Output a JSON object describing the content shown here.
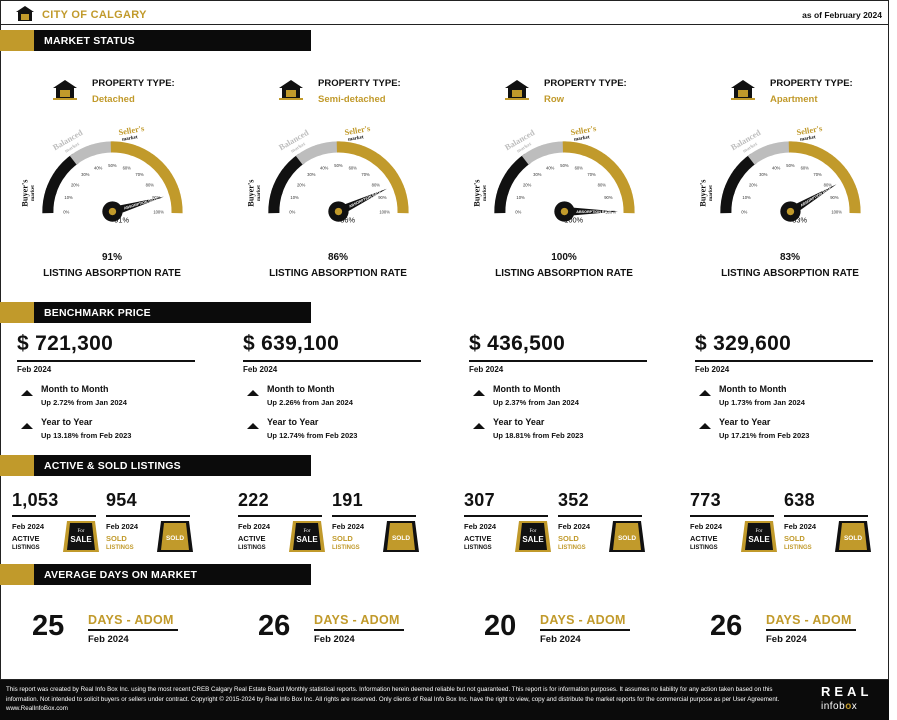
{
  "header": {
    "city": "CITY OF CALGARY",
    "date": "as of February 2024"
  },
  "colors": {
    "gold": "#c19a2b",
    "black": "#0b0b0b",
    "gray": "#bdbdbd"
  },
  "sections": {
    "market_status": "MARKET STATUS",
    "benchmark_price": "BENCHMARK PRICE",
    "active_sold": "ACTIVE & SOLD LISTINGS",
    "days_on_market": "AVERAGE DAYS ON MARKET"
  },
  "gauge_labels": {
    "buyers": "Buyer's",
    "buyers_sub": "market",
    "balanced": "Balanced",
    "balanced_sub": "market",
    "sellers": "Seller's",
    "sellers_sub": "market",
    "ticks": [
      "0%",
      "10%",
      "20%",
      "30%",
      "40%",
      "50%",
      "60%",
      "70%",
      "80%",
      "90%",
      "100%"
    ],
    "needle": "ABSORPTION RATE"
  },
  "market_status": [
    {
      "type_label": "PROPERTY TYPE:",
      "type": "Detached",
      "rate": "91%",
      "rate_value": 91,
      "rate_label": "LISTING ABSORPTION RATE"
    },
    {
      "type_label": "PROPERTY TYPE:",
      "type": "Semi-detached",
      "rate": "86%",
      "rate_value": 86,
      "rate_label": "LISTING ABSORPTION RATE"
    },
    {
      "type_label": "PROPERTY TYPE:",
      "type": "Row",
      "rate": "100%",
      "rate_value": 100,
      "rate_label": "LISTING ABSORPTION RATE"
    },
    {
      "type_label": "PROPERTY TYPE:",
      "type": "Apartment",
      "rate": "83%",
      "rate_value": 83,
      "rate_label": "LISTING ABSORPTION RATE"
    }
  ],
  "benchmark": [
    {
      "price": "$ 721,300",
      "month": "Feb 2024",
      "mtm_title": "Month to Month",
      "mtm": "Up 2.72% from Jan 2024",
      "yty_title": "Year to Year",
      "yty": "Up 13.18% from Feb 2023"
    },
    {
      "price": "$ 639,100",
      "month": "Feb 2024",
      "mtm_title": "Month to Month",
      "mtm": "Up 2.26% from Jan 2024",
      "yty_title": "Year to Year",
      "yty": "Up 12.74% from Feb 2023"
    },
    {
      "price": "$ 436,500",
      "month": "Feb 2024",
      "mtm_title": "Month to Month",
      "mtm": "Up 2.37% from Jan 2024",
      "yty_title": "Year to Year",
      "yty": "Up 18.81% from Feb 2023"
    },
    {
      "price": "$ 329,600",
      "month": "Feb 2024",
      "mtm_title": "Month to Month",
      "mtm": "Up 1.73% from Jan 2024",
      "yty_title": "Year to Year",
      "yty": "Up 17.21% from Feb 2023"
    }
  ],
  "listings": [
    {
      "active": "1,053",
      "sold": "954",
      "month": "Feb 2024",
      "active_label": "ACTIVE",
      "sold_label": "SOLD",
      "listings_label": "LISTINGS",
      "for_text": "For",
      "sale_text": "SALE",
      "sold_sign": "SOLD"
    },
    {
      "active": "222",
      "sold": "191",
      "month": "Feb 2024",
      "active_label": "ACTIVE",
      "sold_label": "SOLD",
      "listings_label": "LISTINGS",
      "for_text": "For",
      "sale_text": "SALE",
      "sold_sign": "SOLD"
    },
    {
      "active": "307",
      "sold": "352",
      "month": "Feb 2024",
      "active_label": "ACTIVE",
      "sold_label": "SOLD",
      "listings_label": "LISTINGS",
      "for_text": "For",
      "sale_text": "SALE",
      "sold_sign": "SOLD"
    },
    {
      "active": "773",
      "sold": "638",
      "month": "Feb 2024",
      "active_label": "ACTIVE",
      "sold_label": "SOLD",
      "listings_label": "LISTINGS",
      "for_text": "For",
      "sale_text": "SALE",
      "sold_sign": "SOLD"
    }
  ],
  "days": [
    {
      "days": "25",
      "label": "DAYS - ADOM",
      "month": "Feb 2024"
    },
    {
      "days": "26",
      "label": "DAYS - ADOM",
      "month": "Feb 2024"
    },
    {
      "days": "20",
      "label": "DAYS - ADOM",
      "month": "Feb 2024"
    },
    {
      "days": "26",
      "label": "DAYS - ADOM",
      "month": "Feb 2024"
    }
  ],
  "footer": {
    "text": "This report was created by Real Info Box Inc. using the most recent CREB Calgary Real Estate Board Monthly statistical reports. Information herein deemed reliable but not guaranteed. This report is for information purposes. It assumes no liability for any action taken based on this information. Not intended to solicit buyers or sellers under contract. Copyright © 2015-2024 by Real Info Box Inc. All rights are reserved. Only clients of Real Info Box Inc. have the right to view, copy and distribute the market reports for the commercial purpose as per User Agreement. www.RealInfoBox.com",
    "logo_top": "REAL",
    "logo_bottom_a": "info",
    "logo_bottom_b": "b",
    "logo_bottom_c": "x"
  }
}
